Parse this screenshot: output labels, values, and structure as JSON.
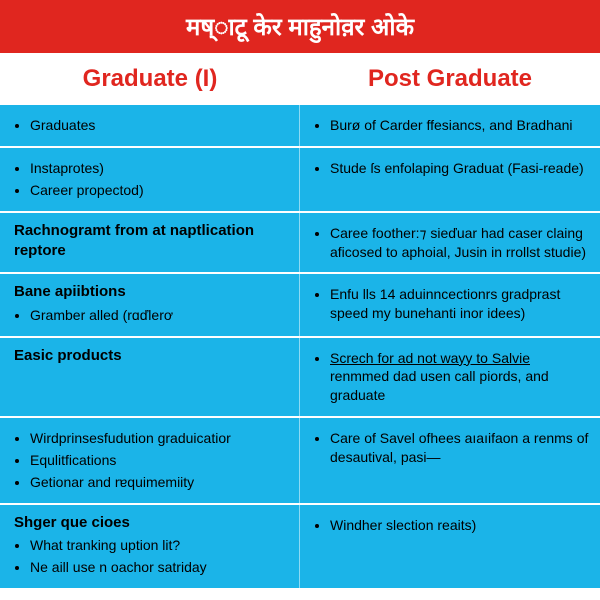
{
  "banner": {
    "title": "मष्ाटू केर माहुनोव़र ओके",
    "bg": "#e0261f",
    "color": "#ffffff",
    "fontsize": 24
  },
  "headers": {
    "left": "Graduate (I)",
    "right": "Post Graduate",
    "color": "#e0261f",
    "fontsize": 24
  },
  "table": {
    "bg": "#1bb4e8",
    "divider": "#ffffff",
    "text_color": "#000000",
    "fontsize": 14,
    "rows": [
      {
        "left": {
          "items": [
            "Graduates"
          ]
        },
        "right": {
          "items": [
            "Burø of Carder ffesiancs, and Bradhani"
          ]
        }
      },
      {
        "left": {
          "items": [
            "Instaprotes)",
            "Career propectod)"
          ]
        },
        "right": {
          "items": [
            "Stude ſs enfolaping Graduat (Fasi-reade)"
          ]
        }
      },
      {
        "left": {
          "heading": "Rachnogramt from at naptlication reptore"
        },
        "right": {
          "items": [
            "Caree foother:⁊ sieďuar had caser claing aficosed to aphoial, Jusin in rrollst studie)"
          ]
        }
      },
      {
        "left": {
          "heading": "Bane apiibtions",
          "items": [
            "Gramber alled (rɑďlerơ"
          ]
        },
        "right": {
          "items": [
            "Enfu lls 14 aduinncectionrs gradprast speed my bunehanti inor idees)"
          ]
        }
      },
      {
        "left": {
          "heading": "Easic products"
        },
        "right": {
          "items_html": [
            "<span class='underline'>Screch for ad not wayy to Salvie</span> renmmed dad usen call piords, and graduate"
          ]
        }
      },
      {
        "left": {
          "items": [
            "Wirdprinsesfudution graduicatior",
            "Equlitfications",
            "Getionar and rɐquimemiity"
          ]
        },
        "right": {
          "items": [
            "Care of Savel ofhees aıaıifaon a renms of desautival, pasi—"
          ]
        }
      },
      {
        "left": {
          "heading": "Shger que cioes",
          "items": [
            "What tranking uption lit?",
            "Ne aill use n oachor satriday"
          ]
        },
        "right": {
          "items": [
            "Windher slection reaits)"
          ]
        }
      }
    ]
  }
}
